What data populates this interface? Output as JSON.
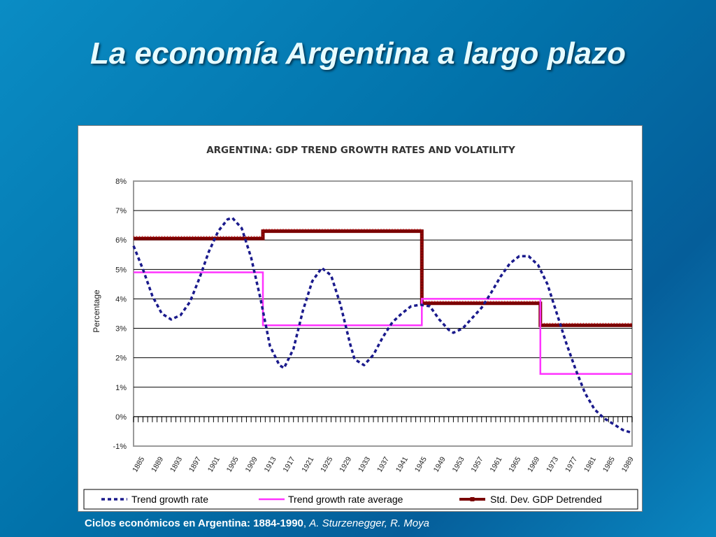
{
  "slide": {
    "title": "La economía Argentina a largo plazo",
    "caption_bold": "Ciclos económicos en Argentina: 1884-1990",
    "caption_sep": ", ",
    "caption_italic": "A. Sturzenegger, R. Moya"
  },
  "chart_data": {
    "type": "line",
    "title": "ARGENTINA: GDP TREND GROWTH RATES AND VOLATILITY",
    "xlabel": "",
    "ylabel": "Percentage",
    "ylim": [
      -1,
      8
    ],
    "xlim": [
      1885,
      1991
    ],
    "y_ticks": [
      -1,
      0,
      1,
      2,
      3,
      4,
      5,
      6,
      7,
      8
    ],
    "y_tick_labels": [
      "-1%",
      "0%",
      "1%",
      "2%",
      "3%",
      "4%",
      "5%",
      "6%",
      "7%",
      "8%"
    ],
    "x_tick_labels": [
      "1885",
      "1889",
      "1893",
      "1897",
      "1901",
      "1905",
      "1909",
      "1913",
      "1917",
      "1921",
      "1925",
      "1929",
      "1933",
      "1937",
      "1941",
      "1945",
      "1949",
      "1953",
      "1957",
      "1961",
      "1965",
      "1969",
      "1973",
      "1977",
      "1981",
      "1985",
      "1989"
    ],
    "grid": true,
    "legend_position": "bottom",
    "colors": {
      "trend": "#1a1a8c",
      "average": "#ff33ff",
      "stddev": "#7a0000",
      "grid": "#000000",
      "plot_border": "#9a9a9a"
    },
    "series": [
      {
        "name": "Trend growth rate",
        "style": "dotted",
        "x": [
          1885,
          1887,
          1889,
          1891,
          1893,
          1895,
          1897,
          1899,
          1901,
          1903,
          1905,
          1906,
          1908,
          1910,
          1912,
          1914,
          1916,
          1917,
          1919,
          1921,
          1923,
          1925,
          1927,
          1929,
          1931,
          1932,
          1934,
          1936,
          1938,
          1940,
          1942,
          1944,
          1946,
          1948,
          1950,
          1952,
          1953,
          1955,
          1957,
          1959,
          1961,
          1963,
          1965,
          1967,
          1969,
          1971,
          1973,
          1975,
          1977,
          1979,
          1981,
          1983,
          1985,
          1987,
          1989,
          1991
        ],
        "values": [
          5.8,
          5.0,
          4.1,
          3.5,
          3.3,
          3.45,
          3.9,
          4.7,
          5.6,
          6.3,
          6.7,
          6.75,
          6.4,
          5.4,
          4.0,
          2.4,
          1.75,
          1.65,
          2.3,
          3.6,
          4.6,
          5.05,
          4.8,
          3.8,
          2.5,
          1.95,
          1.75,
          2.1,
          2.7,
          3.2,
          3.5,
          3.75,
          3.8,
          3.75,
          3.3,
          2.95,
          2.85,
          3.0,
          3.35,
          3.7,
          4.2,
          4.75,
          5.2,
          5.45,
          5.45,
          5.15,
          4.5,
          3.5,
          2.5,
          1.6,
          0.8,
          0.25,
          -0.05,
          -0.25,
          -0.45,
          -0.55
        ]
      },
      {
        "name": "Trend growth rate average",
        "style": "solid",
        "x": [
          1885,
          1912.5,
          1912.5,
          1946.3,
          1946.3,
          1971.5,
          1971.5,
          1991
        ],
        "values": [
          4.9,
          4.9,
          3.1,
          3.1,
          4.0,
          4.0,
          1.45,
          1.45
        ]
      },
      {
        "name": "Std. Dev. GDP Detrended",
        "style": "thick-marked",
        "x": [
          1885,
          1912.5,
          1912.5,
          1946.3,
          1946.3,
          1971.5,
          1971.5,
          1991
        ],
        "values": [
          6.05,
          6.05,
          6.3,
          6.3,
          3.85,
          3.85,
          3.1,
          3.1
        ]
      }
    ]
  }
}
